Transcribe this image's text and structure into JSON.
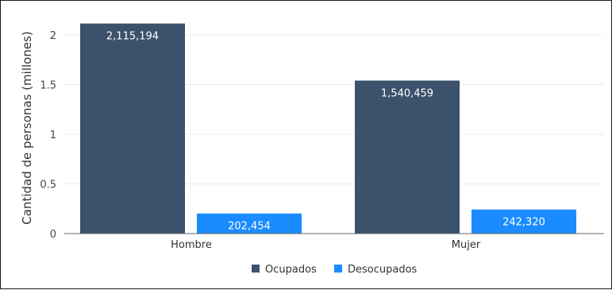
{
  "chart_data": {
    "type": "bar",
    "title": "",
    "xlabel": "",
    "ylabel": "Cantidad de personas (millones)",
    "categories": [
      "Hombre",
      "Mujer"
    ],
    "ylim": [
      0,
      2.2
    ],
    "yticks": [
      0,
      0.5,
      1,
      1.5,
      2
    ],
    "ytick_labels": [
      "0",
      "0.5",
      "1",
      "1.5",
      "2"
    ],
    "grid": true,
    "legend_position": "bottom",
    "series": [
      {
        "name": "Ocupados",
        "color": "#3b516c",
        "values": [
          2.115194,
          1.540459
        ],
        "data_labels": [
          "2,115,194",
          "1,540,459"
        ]
      },
      {
        "name": "Desocupados",
        "color": "#1a8cff",
        "values": [
          0.202454,
          0.24232
        ],
        "data_labels": [
          "202,454",
          "242,320"
        ]
      }
    ]
  }
}
